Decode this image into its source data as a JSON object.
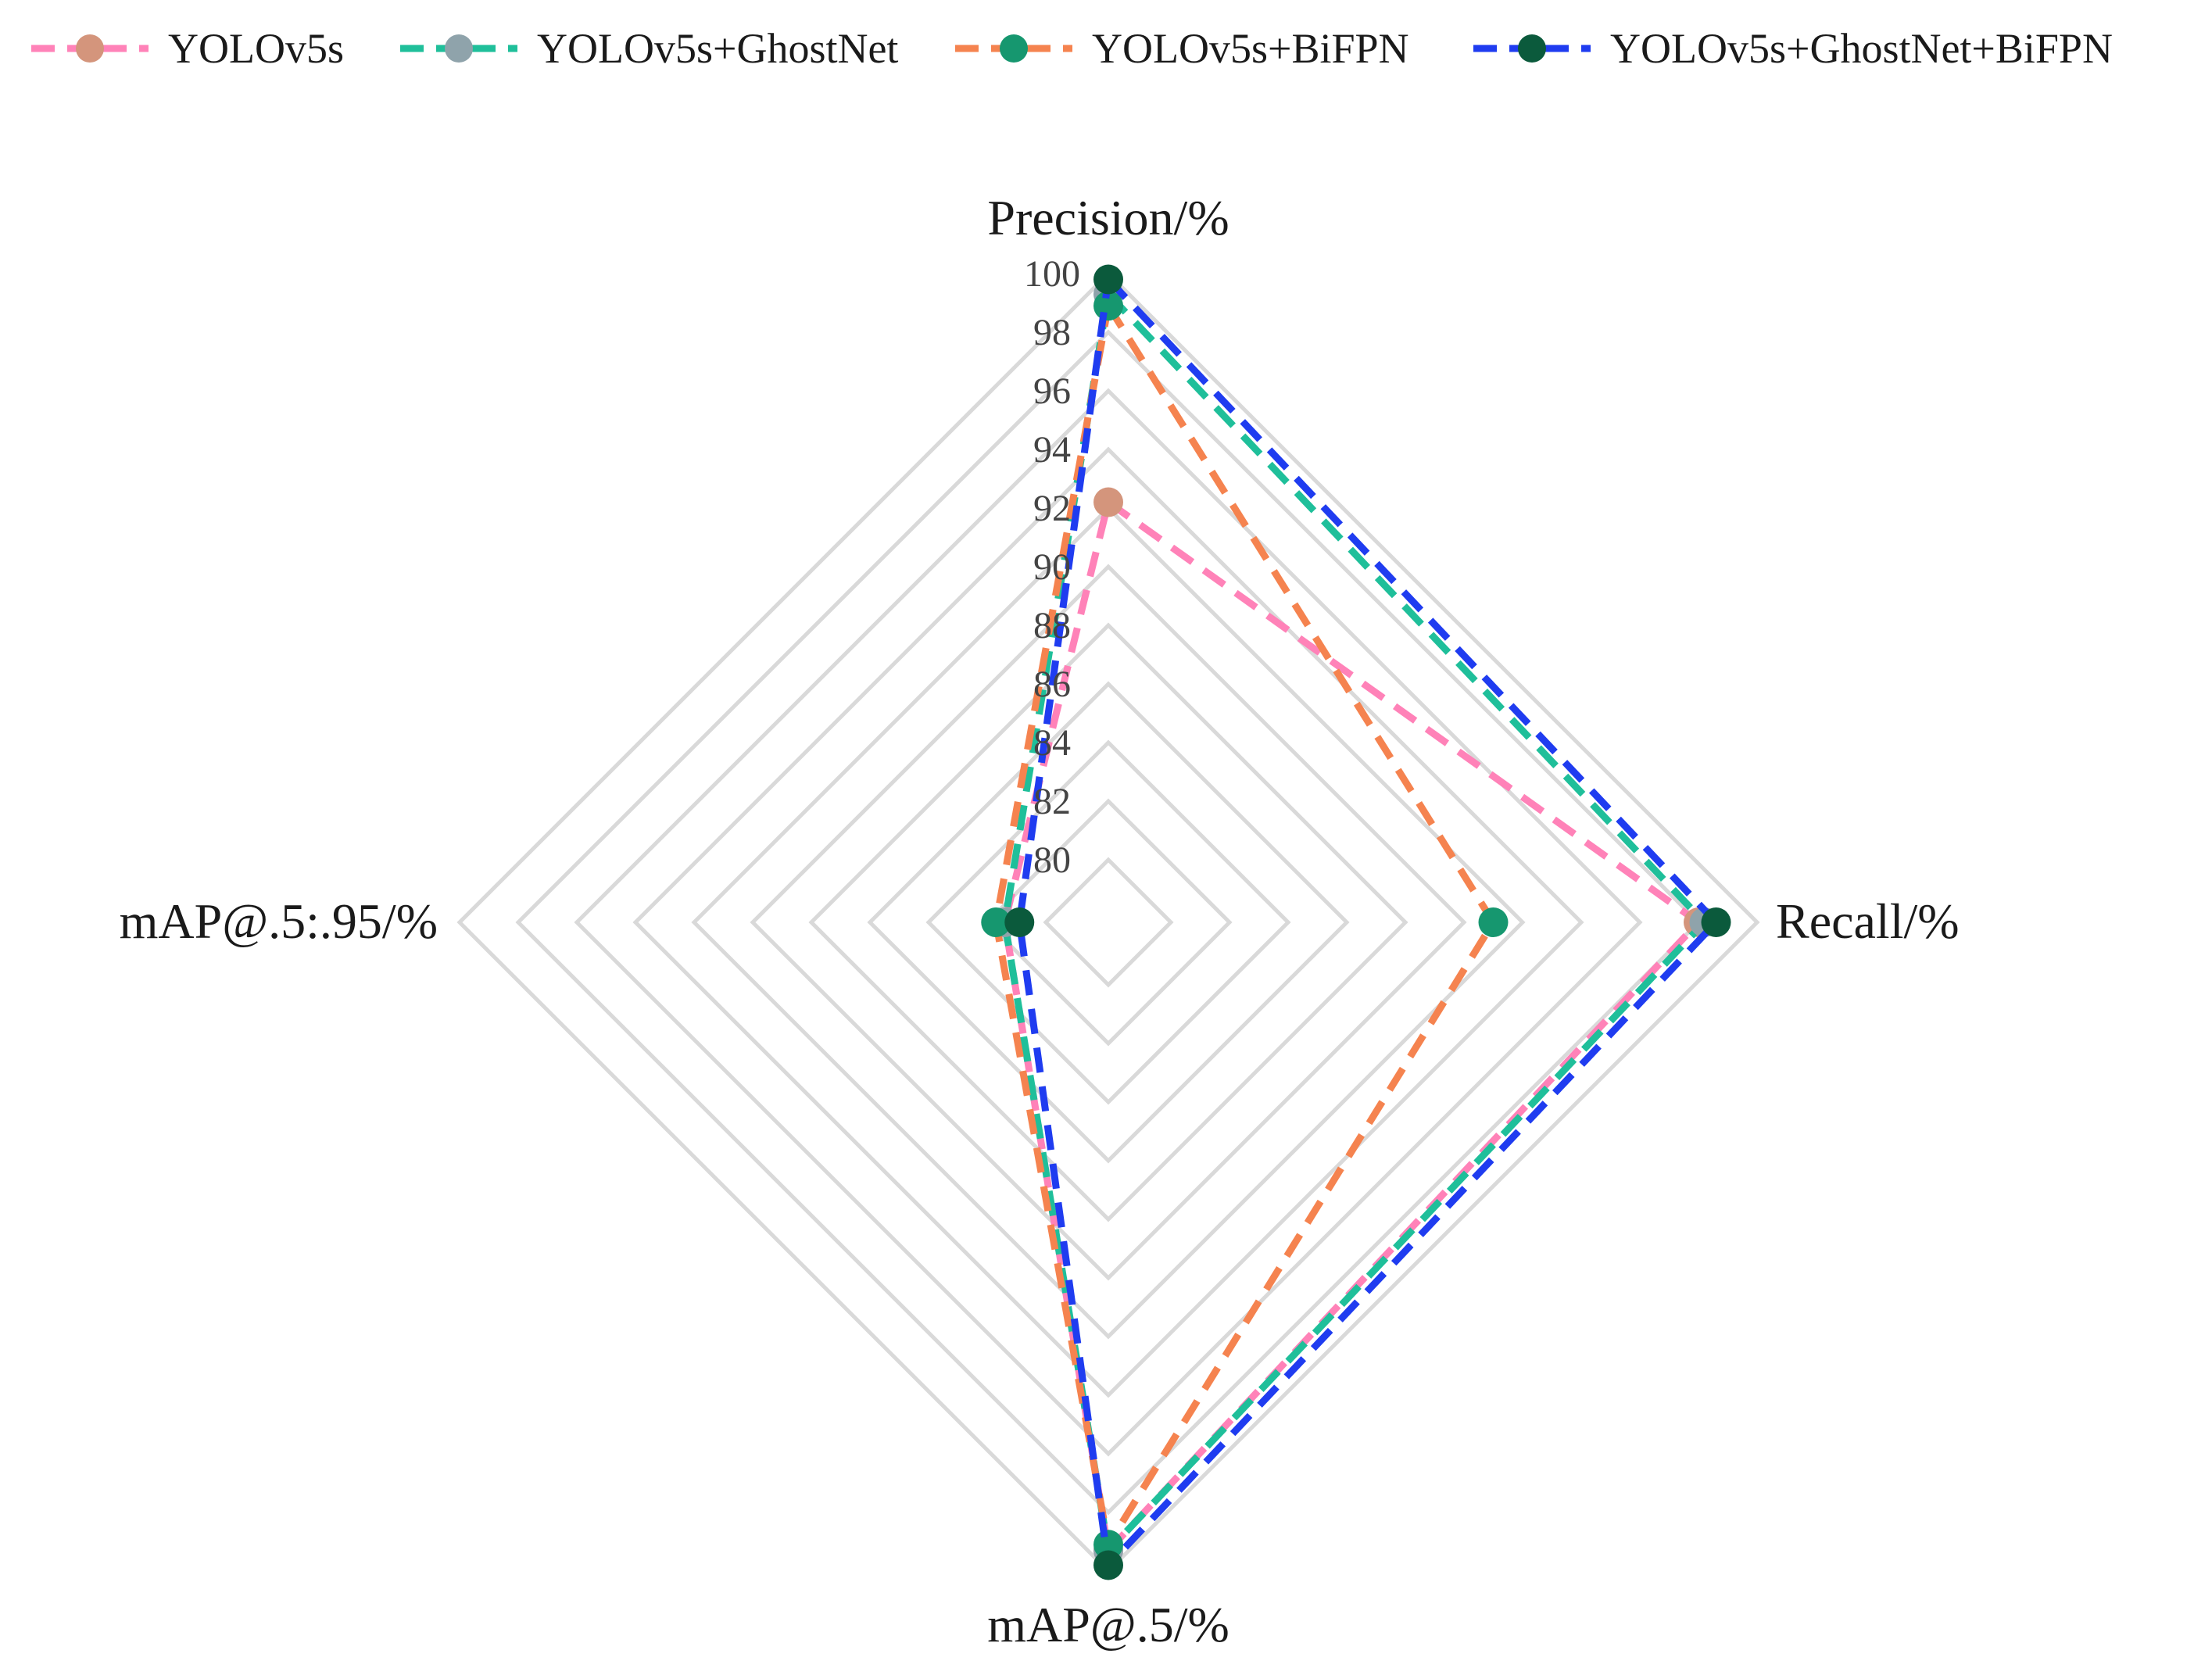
{
  "chart_data": {
    "type": "radar",
    "axes": [
      "Precision/%",
      "Recall/%",
      "mAP@.5/%",
      "mAP@.5:.95/%"
    ],
    "range": [
      80,
      100
    ],
    "ticks": [
      "80",
      "82",
      "84",
      "86",
      "88",
      "90",
      "92",
      "94",
      "96",
      "98",
      "100"
    ],
    "grid": true,
    "legend_position": "top",
    "series": [
      {
        "name": "YOLOv5s",
        "line_color": "#ff82b8",
        "marker_color": "#d4957c",
        "values": [
          92.2,
          98.0,
          99.3,
          81.4
        ]
      },
      {
        "name": "YOLOv5s+GhostNet",
        "line_color": "#1fbf9a",
        "marker_color": "#8fa3ab",
        "values": [
          99.3,
          98.2,
          99.3,
          81.4
        ]
      },
      {
        "name": "YOLOv5s+BiFPN",
        "line_color": "#f5834f",
        "marker_color": "#16976f",
        "values": [
          98.9,
          91.0,
          99.1,
          81.7
        ]
      },
      {
        "name": "YOLOv5s+GhostNet+BiFPN",
        "line_color": "#1f3cf0",
        "marker_color": "#0b5a3c",
        "values": [
          99.8,
          98.6,
          99.8,
          80.9
        ]
      }
    ]
  }
}
